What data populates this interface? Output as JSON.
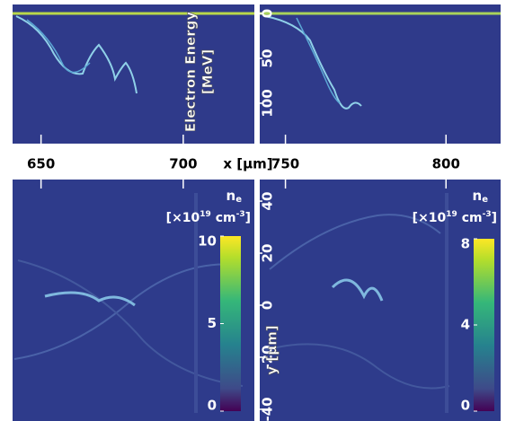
{
  "chart_data": [
    {
      "type": "heatmap",
      "xlim": [
        640,
        725
      ],
      "xticks": [
        650,
        700
      ],
      "xlabel": "x [μm]",
      "ylim": [
        -10,
        145
      ],
      "y_inverted": true,
      "colormap": "viridis"
    },
    {
      "type": "heatmap",
      "xlim": [
        742,
        817
      ],
      "xticks": [
        750,
        800
      ],
      "ylim": [
        -10,
        145
      ],
      "y_inverted": true,
      "yticks": [
        0,
        50,
        100
      ],
      "ylabel": [
        "Electron Energy",
        "[MeV]"
      ],
      "colormap": "viridis"
    },
    {
      "type": "heatmap",
      "xlim": [
        640,
        725
      ],
      "ylim": [
        -44.5,
        48.3
      ],
      "colormap": "viridis",
      "colorbar": {
        "title": [
          "n",
          "e"
        ],
        "units": [
          "[×10",
          "19",
          " cm",
          "-3",
          "]"
        ],
        "clim": [
          0,
          10
        ],
        "ticks": [
          0,
          5,
          10
        ]
      }
    },
    {
      "type": "heatmap",
      "xlim": [
        742,
        817
      ],
      "ylim": [
        -44.5,
        48.3
      ],
      "yticks": [
        -40,
        -20,
        0,
        20,
        40
      ],
      "ylabel": [
        "y [μm]"
      ],
      "colormap": "viridis",
      "colorbar": {
        "title": [
          "n",
          "e"
        ],
        "units": [
          "[×10",
          "19",
          " cm",
          "-3",
          "]"
        ],
        "clim": [
          0,
          8
        ],
        "ticks": [
          0,
          4,
          8
        ]
      }
    }
  ]
}
